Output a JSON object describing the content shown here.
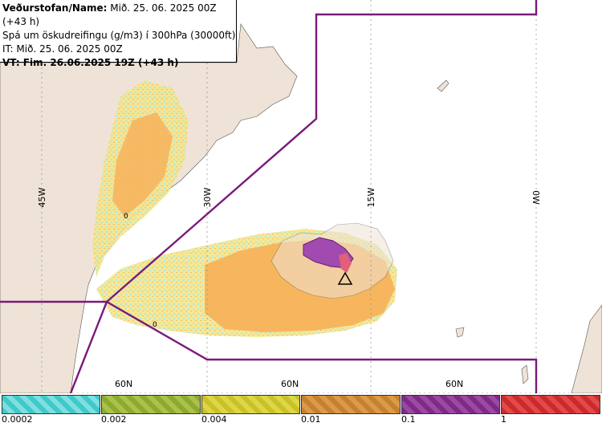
{
  "info": {
    "line1_label": "Veðurstofan/Name:",
    "line1_value": "Mið. 25. 06. 2025 00Z (+43 h)",
    "line2": "Spá um öskudreifingu (g/m3) í 300hPa (30000ft)",
    "line3": "IT: Mið. 25. 06. 2025 00Z",
    "line4": "VT: Fim. 26.06.2025 19Z (+43 h)"
  },
  "map_labels": {
    "lon_45w": "45W",
    "lon_30w": "30W",
    "lon_15w": "15W",
    "lon_0w": "0W",
    "lat_60n_a": "60N",
    "lat_60n_b": "60N",
    "lat_60n_c": "60N",
    "contour_0_a": "0",
    "contour_0_b": "0"
  },
  "legend": {
    "colors": {
      "cyan": "#3fc9c9",
      "olive": "#8da92e",
      "yellow": "#c9c226",
      "orange": "#c7802c",
      "purple": "#7f2a86",
      "red": "#cc2a2a"
    },
    "tick_labels": [
      "0.0002",
      "0.002",
      "0.004",
      "0.01",
      "0.1",
      "1"
    ]
  },
  "colors": {
    "land": "#efe3d7",
    "fir_boundary": "#7a1a7a",
    "ash_orange": "#f7b35a",
    "ash_yellow": "#f5ea88",
    "ash_cyan": "#9fe8e2",
    "ash_purple": "#a14bb0"
  }
}
